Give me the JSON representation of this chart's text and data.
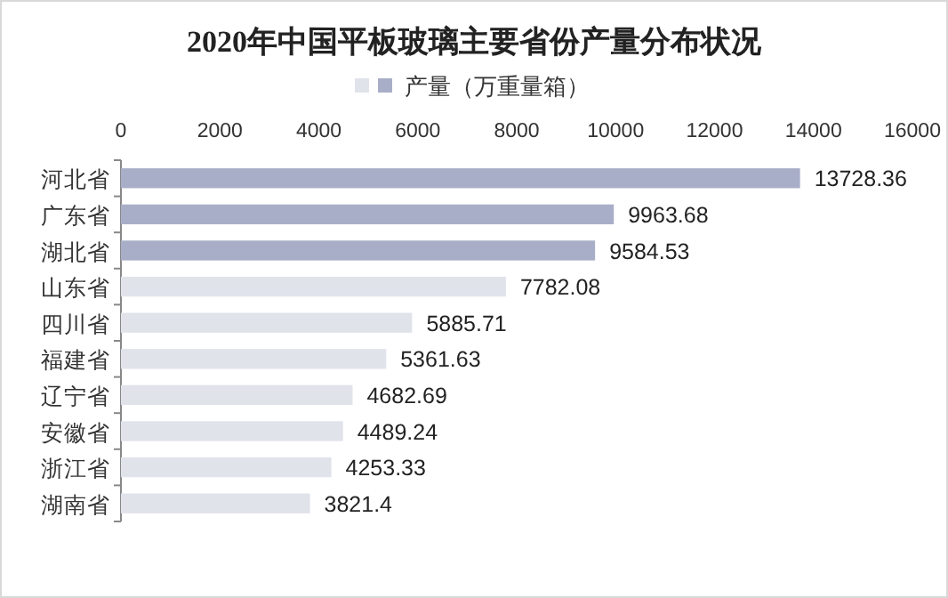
{
  "chart_data": {
    "type": "bar",
    "orientation": "horizontal",
    "title": "2020年中国平板玻璃主要省份产量分布状况",
    "categories": [
      "河北省",
      "广东省",
      "湖北省",
      "山东省",
      "四川省",
      "福建省",
      "辽宁省",
      "安徽省",
      "浙江省",
      "湖南省"
    ],
    "series": [
      {
        "name": "产量（万重量箱）",
        "colors": [
          "#a9aec8",
          "#a9aec8",
          "#a9aec8",
          "#e1e3eb",
          "#e1e3eb",
          "#e1e3eb",
          "#e1e3eb",
          "#e1e3eb",
          "#e1e3eb",
          "#e1e3eb"
        ],
        "values": [
          13728.36,
          9963.68,
          9584.53,
          7782.08,
          5885.71,
          5361.63,
          4682.69,
          4489.24,
          4253.33,
          3821.4
        ]
      }
    ],
    "xlim": [
      0,
      16000
    ],
    "xticks": [
      0,
      2000,
      4000,
      6000,
      8000,
      10000,
      12000,
      14000,
      16000
    ],
    "data_labels": true,
    "legend": "top",
    "grid": false
  }
}
